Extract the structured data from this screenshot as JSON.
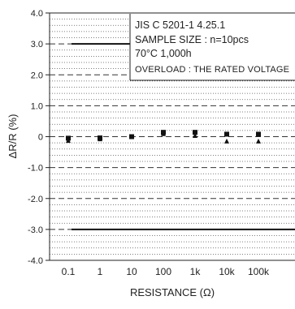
{
  "chart_data": {
    "type": "scatter",
    "xlabel": "RESISTANCE (Ω)",
    "ylabel": "ΔR/R (%)",
    "x_scale": "log",
    "categories": [
      "0.1",
      "1",
      "10",
      "100",
      "1k",
      "10k",
      "100k"
    ],
    "x_values": [
      0.1,
      1,
      10,
      100,
      1000,
      10000,
      100000
    ],
    "ylim": [
      -4.0,
      4.0
    ],
    "yticks": [
      4.0,
      3.0,
      2.0,
      1.0,
      0,
      -1.0,
      -2.0,
      -3.0,
      -4.0
    ],
    "ytick_labels": [
      "4.0",
      "3.0",
      "2.0",
      "1.0",
      "0",
      "-1.0",
      "-2.0",
      "-3.0",
      "-4.0"
    ],
    "limits": [
      3.0,
      -3.0
    ],
    "grid": true,
    "series": [
      {
        "marker": "square",
        "values": [
          -0.05,
          -0.04,
          0.0,
          0.14,
          0.14,
          0.08,
          0.08
        ]
      },
      {
        "marker": "triangle",
        "values": [
          -0.12,
          -0.07,
          0.0,
          0.1,
          0.04,
          -0.14,
          -0.14
        ]
      }
    ],
    "annotations": [
      "JIS C 5201-1 4.25.1",
      "SAMPLE SIZE : n=10pcs",
      "70°C 1,000h",
      "OVERLOAD : THE RATED VOLTAGE"
    ]
  }
}
